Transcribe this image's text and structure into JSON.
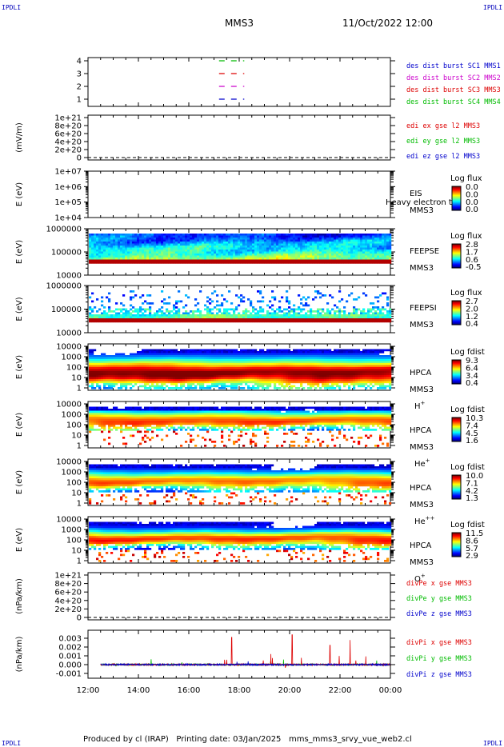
{
  "header": {
    "logo_left": "IPDLI",
    "logo_right": "IPDLI",
    "logo_bottom_left": "IPDLI",
    "logo_bottom_right": "IPDLI",
    "mission": "MMS3",
    "date": "11/Oct/2022 12:00"
  },
  "footer": {
    "produced_by": "Produced by cl (IRAP)",
    "printing_date": "Printing date: 03/Jan/2025",
    "filename": "mms_mms3_srvy_vue_web2.cl"
  },
  "chart_data": {
    "type": "heatmap",
    "x_axis": {
      "ticks": [
        "12:00",
        "14:00",
        "16:00",
        "18:00",
        "20:00",
        "22:00",
        "00:00"
      ],
      "range_hours": [
        12,
        24
      ]
    },
    "panels": [
      {
        "id": "burst",
        "type": "line",
        "ylabel": "",
        "yticks": [
          "4",
          "3",
          "2",
          "1"
        ],
        "series": [
          {
            "name": "des dist burst SC1 MMS1",
            "color": "#0000cc",
            "value": 1,
            "segment_hours": [
              17.2,
              18.2
            ]
          },
          {
            "name": "des dist burst SC2 MMS2",
            "color": "#cc00cc",
            "value": 2,
            "segment_hours": [
              17.2,
              18.2
            ]
          },
          {
            "name": "des dist burst SC3 MMS3",
            "color": "#dd0000",
            "value": 3,
            "segment_hours": [
              17.2,
              18.2
            ]
          },
          {
            "name": "des dist burst SC4 MMS4",
            "color": "#00bb00",
            "value": 4,
            "segment_hours": [
              17.2,
              18.2
            ]
          }
        ]
      },
      {
        "id": "edi",
        "type": "line",
        "ylabel": "(mV/m)",
        "yticks": [
          "1e+21",
          "8e+20",
          "6e+20",
          "4e+20",
          "2e+20",
          "0"
        ],
        "series": [
          {
            "name": "edi ex gse l2 MMS3",
            "color": "#dd0000"
          },
          {
            "name": "edi ey gse l2 MMS3",
            "color": "#00bb00"
          },
          {
            "name": "edi ez gse l2 MMS3",
            "color": "#0000cc"
          }
        ],
        "zero_line": true
      },
      {
        "id": "eis",
        "type": "heatmap",
        "ylabel": "E (eV)",
        "yticks": [
          "1e+07",
          "1e+06",
          "1e+05",
          "1e+04"
        ],
        "labels": [
          "EIS",
          "MMS3"
        ],
        "overlay_text": "Heavy electron to",
        "colorbar": {
          "title": "Log flux",
          "ticks": [
            "0.0",
            "0.0",
            "0.0",
            "0.0"
          ]
        },
        "data": "empty"
      },
      {
        "id": "feepse",
        "type": "heatmap",
        "ylabel": "E (eV)",
        "yticks": [
          "1000000",
          "100000",
          "10000"
        ],
        "labels": [
          "FEEPSE",
          "MMS3"
        ],
        "colorbar": {
          "title": "Log flux",
          "ticks": [
            "2.8",
            "1.7",
            "0.6",
            "-0.5"
          ]
        }
      },
      {
        "id": "feepsi",
        "type": "heatmap",
        "ylabel": "E (eV)",
        "yticks": [
          "1000000",
          "100000",
          "10000"
        ],
        "labels": [
          "FEEPSI",
          "MMS3"
        ],
        "colorbar": {
          "title": "Log flux",
          "ticks": [
            "2.7",
            "2.0",
            "1.2",
            "0.4"
          ]
        }
      },
      {
        "id": "hpca_h",
        "type": "heatmap",
        "ylabel": "E (eV)",
        "yticks": [
          "10000",
          "1000",
          "100",
          "10",
          "1"
        ],
        "labels": [
          "HPCA",
          "MMS3"
        ],
        "species": "H",
        "charge": "+",
        "colorbar": {
          "title": "Log fdist",
          "ticks": [
            "9.3",
            "6.4",
            "3.4",
            "0.4"
          ]
        }
      },
      {
        "id": "hpca_he",
        "type": "heatmap",
        "ylabel": "E (eV)",
        "yticks": [
          "10000",
          "1000",
          "100",
          "10",
          "1"
        ],
        "labels": [
          "HPCA",
          "MMS3"
        ],
        "species": "He",
        "charge": "+",
        "colorbar": {
          "title": "Log fdist",
          "ticks": [
            "10.3",
            "7.4",
            "4.5",
            "1.6"
          ]
        }
      },
      {
        "id": "hpca_hepp",
        "type": "heatmap",
        "ylabel": "E (eV)",
        "yticks": [
          "10000",
          "1000",
          "100",
          "10",
          "1"
        ],
        "labels": [
          "HPCA",
          "MMS3"
        ],
        "species": "He",
        "charge": "++",
        "colorbar": {
          "title": "Log fdist",
          "ticks": [
            "10.0",
            "7.1",
            "4.2",
            "1.3"
          ]
        }
      },
      {
        "id": "hpca_o",
        "type": "heatmap",
        "ylabel": "E (eV)",
        "yticks": [
          "10000",
          "1000",
          "100",
          "10",
          "1"
        ],
        "labels": [
          "HPCA",
          "MMS3"
        ],
        "species": "O",
        "charge": "+",
        "colorbar": {
          "title": "Log fdist",
          "ticks": [
            "11.5",
            "8.6",
            "5.7",
            "2.9"
          ]
        }
      },
      {
        "id": "divpe",
        "type": "line",
        "ylabel": "(nPa/km)",
        "yticks": [
          "1e+21",
          "8e+20",
          "6e+20",
          "4e+20",
          "2e+20",
          "0"
        ],
        "series": [
          {
            "name": "divPe x gse MMS3",
            "color": "#dd0000"
          },
          {
            "name": "divPe y gse MMS3",
            "color": "#00bb00"
          },
          {
            "name": "divPe z gse MMS3",
            "color": "#0000cc"
          }
        ],
        "zero_line": true
      },
      {
        "id": "divpi",
        "type": "line",
        "ylabel": "(nPa/km)",
        "yticks": [
          "0.003",
          "0.002",
          "0.001",
          "0.000",
          "-0.001"
        ],
        "ylim": [
          -0.0015,
          0.0035
        ],
        "series": [
          {
            "name": "divPi x gse MMS3",
            "color": "#dd0000"
          },
          {
            "name": "divPi y gse MMS3",
            "color": "#00bb00"
          },
          {
            "name": "divPi z gse MMS3",
            "color": "#0000cc"
          }
        ]
      }
    ]
  }
}
